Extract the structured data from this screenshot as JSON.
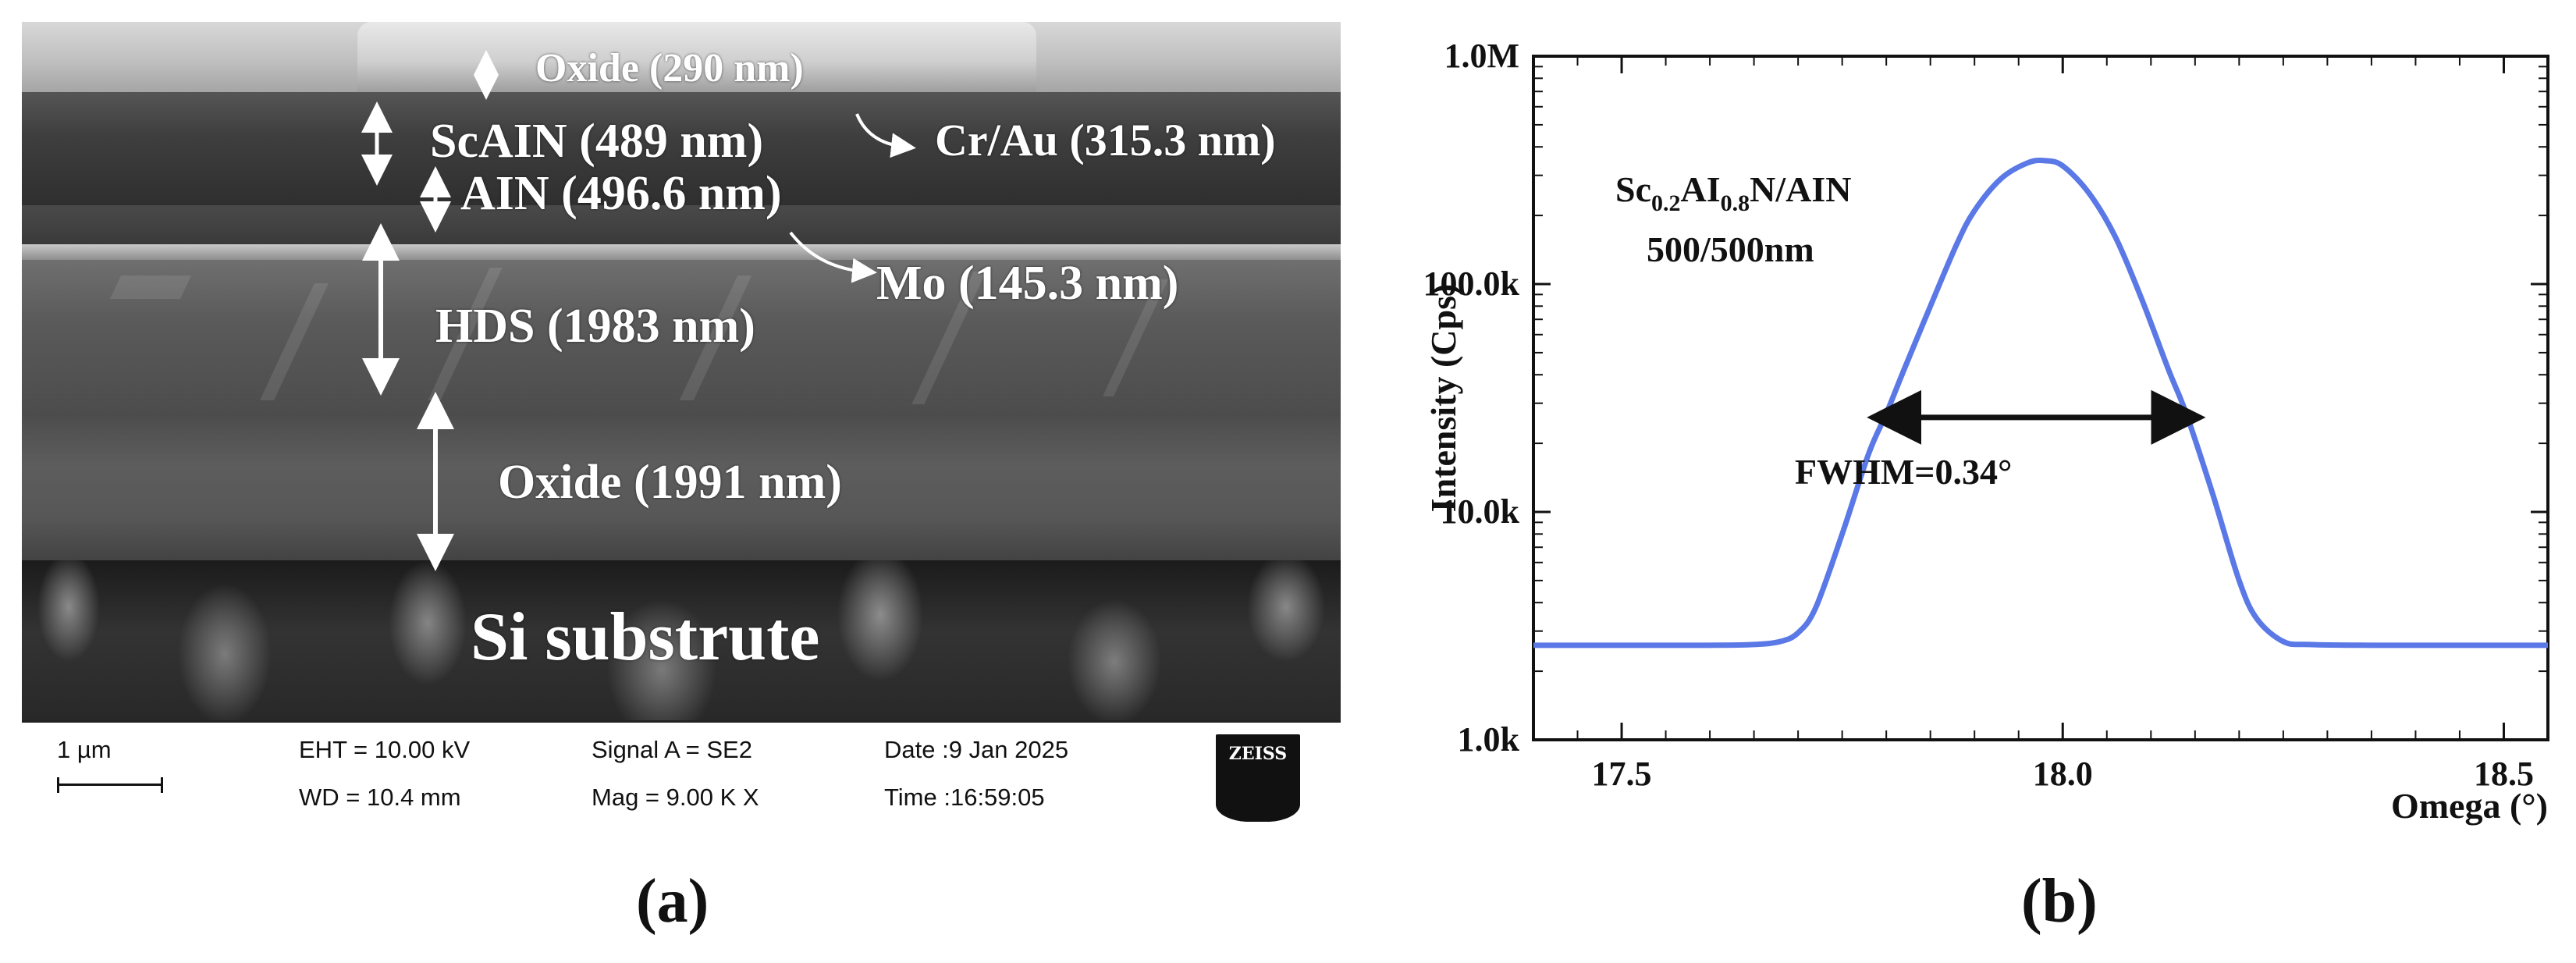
{
  "panel_a": {
    "labels": {
      "oxide_top": "Oxide (290 nm)",
      "scaln": "ScAIN (489 nm)",
      "craui": "Cr/Au (315.3 nm)",
      "aln": "AIN (496.6 nm)",
      "mo": "Mo (145.3 nm)",
      "hds": "HDS (1983 nm)",
      "oxide": "Oxide (1991 nm)",
      "si": "Si substrute"
    },
    "info": {
      "scale": "1 µm",
      "eht": "EHT = 10.00 kV",
      "wd": "WD = 10.4 mm",
      "signal": "Signal A = SE2",
      "mag": "Mag = 9.00 K X",
      "date": "Date :9 Jan 2025",
      "time": "Time :16:59:05",
      "logo": "ZEISS"
    },
    "caption": "(a)"
  },
  "panel_b": {
    "caption": "(b)"
  },
  "chart_data": {
    "type": "line",
    "title": "",
    "xlabel": "Omega (°)",
    "ylabel": "Intensity (Cps)",
    "yscale": "log",
    "xlim": [
      17.4,
      18.55
    ],
    "ylim": [
      1000,
      1000000
    ],
    "x_ticks": [
      17.5,
      18.0,
      18.5
    ],
    "x_tick_labels": [
      "17.5",
      "18.0",
      "18.5"
    ],
    "y_ticks": [
      1000,
      10000,
      100000,
      1000000
    ],
    "y_tick_labels": [
      "1.0k",
      "10.0k",
      "100.0k",
      "1.0M"
    ],
    "grid": false,
    "color": "#5a78e6",
    "series": [
      {
        "x": [
          17.4,
          17.5,
          17.6,
          17.65,
          17.68,
          17.7,
          17.72,
          17.75,
          17.78,
          17.8,
          17.82,
          17.85,
          17.88,
          17.9,
          17.93,
          17.96,
          17.98,
          18.0,
          18.03,
          18.06,
          18.09,
          18.12,
          18.14,
          18.17,
          18.2,
          18.22,
          18.25,
          18.28,
          18.35,
          18.45,
          18.55
        ],
        "y": [
          2600,
          2600,
          2600,
          2620,
          2700,
          2950,
          3800,
          8000,
          18000,
          27000,
          42000,
          80000,
          150000,
          210000,
          290000,
          340000,
          348000,
          330000,
          250000,
          160000,
          85000,
          42000,
          27000,
          12000,
          5000,
          3400,
          2700,
          2620,
          2600,
          2600,
          2600
        ]
      }
    ],
    "annotations": {
      "sample_line1": "Sc",
      "sample_sub1": "0.2",
      "sample_mid": "AI",
      "sample_sub2": "0.8",
      "sample_end": "N/AIN",
      "sample_line2": "500/500nm",
      "fwhm": "FWHM=0.34°",
      "fwhm_x": [
        17.8,
        18.14
      ],
      "fwhm_y": 26000
    }
  }
}
